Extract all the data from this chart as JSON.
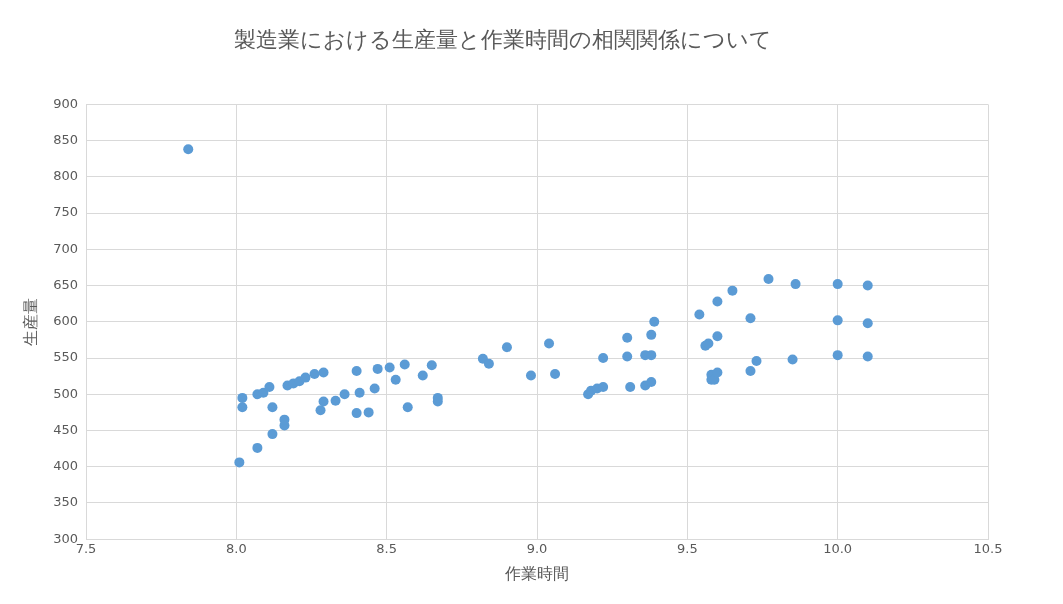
{
  "chart_data": {
    "type": "scatter",
    "title": "製造業における生産量と作業時間の相関関係について",
    "xlabel": "作業時間",
    "ylabel": "生産量",
    "xlim": [
      7.5,
      10.5
    ],
    "xticks": [
      {
        "value": 7.5,
        "label": "7.5"
      },
      {
        "value": 8,
        "label": "8.0"
      },
      {
        "value": 8.5,
        "label": "8.5"
      },
      {
        "value": 9,
        "label": "9.0"
      },
      {
        "value": 9.5,
        "label": "9.5"
      },
      {
        "value": 10,
        "label": "10.0"
      },
      {
        "value": 10.5,
        "label": "10.5"
      }
    ],
    "ylim": [
      300,
      900
    ],
    "yticks": [
      300,
      350,
      400,
      450,
      500,
      550,
      600,
      650,
      700,
      750,
      800,
      850,
      900
    ],
    "grid": true,
    "legend": false,
    "marker": "circle",
    "series": [
      {
        "color": "#5b9bd5",
        "x": [
          7.84,
          8.01,
          8.02,
          8.02,
          8.07,
          8.07,
          8.09,
          8.11,
          8.12,
          8.12,
          8.16,
          8.16,
          8.17,
          8.19,
          8.21,
          8.23,
          8.26,
          8.28,
          8.29,
          8.29,
          8.33,
          8.36,
          8.4,
          8.4,
          8.41,
          8.44,
          8.46,
          8.47,
          8.51,
          8.53,
          8.56,
          8.57,
          8.62,
          8.65,
          8.67,
          8.67,
          8.82,
          8.84,
          8.9,
          8.98,
          9.04,
          9.06,
          9.17,
          9.18,
          9.2,
          9.22,
          9.22,
          9.3,
          9.3,
          9.31,
          9.36,
          9.36,
          9.38,
          9.38,
          9.38,
          9.39,
          9.54,
          9.56,
          9.57,
          9.58,
          9.58,
          9.59,
          9.6,
          9.6,
          9.6,
          9.65,
          9.71,
          9.71,
          9.73,
          9.77,
          9.85,
          9.86,
          10.0,
          10.0,
          10.0,
          10.1,
          10.1,
          10.1
        ],
        "values": [
          838,
          406,
          495,
          482,
          426,
          500,
          502,
          510,
          482,
          445,
          457,
          465,
          512,
          515,
          518,
          523,
          528,
          478,
          490,
          530,
          491,
          500,
          532,
          474,
          502,
          475,
          508,
          535,
          537,
          520,
          541,
          482,
          526,
          540,
          490,
          495,
          549,
          542,
          565,
          526,
          570,
          528,
          500,
          505,
          508,
          510,
          550,
          578,
          552,
          510,
          554,
          512,
          554,
          582,
          517,
          600,
          610,
          567,
          570,
          520,
          527,
          520,
          530,
          628,
          580,
          643,
          605,
          532,
          546,
          659,
          548,
          652,
          652,
          602,
          554,
          650,
          598,
          552
        ]
      }
    ]
  }
}
